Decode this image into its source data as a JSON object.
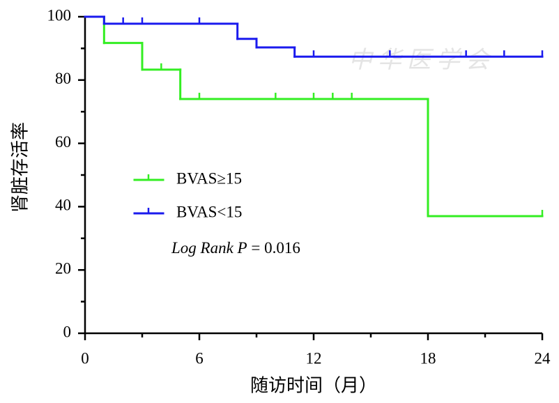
{
  "chart_data": {
    "type": "km",
    "xlabel": "随访时间（月）",
    "ylabel": "肾脏存活率",
    "xlim": [
      0,
      24
    ],
    "xticks": [
      0,
      6,
      12,
      18,
      24
    ],
    "xminorticks": [
      3,
      9,
      15,
      21
    ],
    "ylim": [
      0,
      100
    ],
    "yticks": [
      0,
      20,
      40,
      60,
      80,
      100
    ],
    "yminorticks": [
      10,
      30,
      50,
      70,
      90
    ],
    "series": [
      {
        "name": "BVAS≥15",
        "color": "#33ee22",
        "x": [
          0,
          1,
          3,
          5,
          18
        ],
        "values": [
          100,
          91.7,
          83.3,
          74,
          37
        ],
        "censor_x": [
          4,
          6,
          10,
          12,
          13,
          14,
          24
        ],
        "censor_values": [
          83.3,
          74,
          74,
          74,
          74,
          74,
          37
        ]
      },
      {
        "name": "BVAS<15",
        "color": "#1a1aee",
        "x": [
          0,
          1,
          8,
          9,
          11
        ],
        "values": [
          100,
          97.8,
          93,
          90.3,
          87.4
        ],
        "censor_x": [
          2,
          3,
          6,
          12,
          16,
          20,
          22,
          24
        ],
        "censor_values": [
          97.8,
          97.8,
          97.8,
          87.4,
          87.4,
          87.4,
          87.4,
          87.4
        ]
      }
    ],
    "annotation": {
      "italic": "Log Rank P",
      "text": "= 0.016"
    },
    "watermark": "中华医学会"
  }
}
